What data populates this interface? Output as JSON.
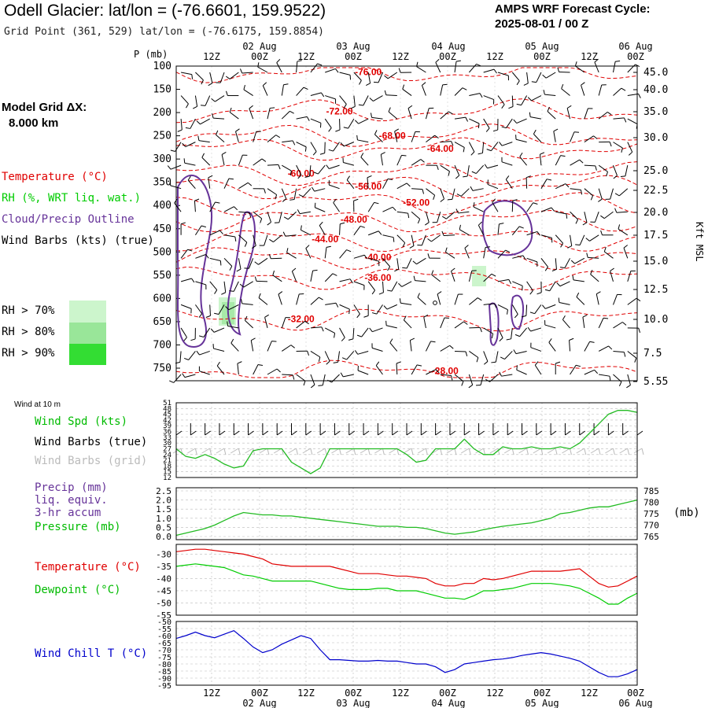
{
  "header": {
    "title": "Odell Glacier:  lat/lon = (-76.6601, 159.9522)",
    "grid_point": "Grid Point (361, 529) lat/lon = (-76.6175, 159.8854)",
    "cycle_line1": "AMPS WRF Forecast Cycle:",
    "cycle_line2": "2025-08-01 / 00  Z"
  },
  "model_grid": {
    "label": "Model Grid ΔX:",
    "value": "8.000 km"
  },
  "time_axis": {
    "top_date_labels": [
      "02 Aug",
      "03 Aug",
      "04 Aug",
      "05 Aug",
      "06 Aug"
    ],
    "hour_labels": [
      "12Z",
      "00Z",
      "12Z",
      "00Z",
      "12Z",
      "00Z",
      "12Z",
      "00Z",
      "12Z",
      "00Z"
    ],
    "bottom_date_labels": [
      "02 Aug",
      "03 Aug",
      "04 Aug",
      "05 Aug",
      "06 Aug"
    ]
  },
  "legend_upper": {
    "temperature": "Temperature (°C)",
    "rh": "RH (%, WRT liq. wat.)",
    "cloud": "Cloud/Precip Outline",
    "barbs": "Wind Barbs (kts) (true)",
    "rh_levels": [
      "RH > 70%",
      "RH > 80%",
      "RH > 90%"
    ],
    "rh_colors": [
      "#ccf5cc",
      "#99e699",
      "#33dd33"
    ]
  },
  "legend_wind": {
    "title": "Wind at 10 m",
    "spd": "Wind Spd (kts)",
    "barbs_true": "Wind Barbs (true)",
    "barbs_grid": "Wind Barbs (grid)"
  },
  "legend_precip": {
    "line1": "Precip (mm)",
    "line2": "liq. equiv.",
    "line3": "3-hr accum",
    "pressure": "Pressure (mb)"
  },
  "legend_temp": {
    "temp": "Temperature (°C)",
    "dew": "Dewpoint (°C)"
  },
  "legend_chill": {
    "label": "Wind Chill T (°C)"
  },
  "axes_labels": {
    "p_label": "P (mb)",
    "kft_label": "Kft MSL",
    "mb_label": "(mb)"
  },
  "colors": {
    "temperature": "#e00000",
    "dewpoint": "#00cc00",
    "cloud": "#663399",
    "windchill": "#0000cc",
    "wind_speed": "#22bb22",
    "grid_barbs": "#bbbbbb"
  },
  "chart_data": [
    {
      "type": "line",
      "panel": "time-height cross section",
      "yaxis_left": "P (mb)",
      "y_ticks_left": [
        "100",
        "150",
        "200",
        "250",
        "300",
        "350",
        "400",
        "450",
        "500",
        "550",
        "600",
        "650",
        "700",
        "750"
      ],
      "y_ticks_right": [
        "45.0",
        "40.0",
        "35.0",
        "30.0",
        "25.0",
        "22.5",
        "20.0",
        "17.5",
        "15.0",
        "12.5",
        "10.0",
        "7.5",
        "5.55"
      ],
      "contour_labels": [
        {
          "text": "-76.00",
          "x": 40,
          "p": 113
        },
        {
          "text": "-72.00",
          "x": 34,
          "p": 197
        },
        {
          "text": "-68.00",
          "x": 45,
          "p": 250
        },
        {
          "text": "-64.00",
          "x": 55,
          "p": 278
        },
        {
          "text": "-60.00",
          "x": 26,
          "p": 331
        },
        {
          "text": "-56.00",
          "x": 40,
          "p": 359
        },
        {
          "text": "-52.00",
          "x": 50,
          "p": 394
        },
        {
          "text": "-48.00",
          "x": 37,
          "p": 430
        },
        {
          "text": "-44.00",
          "x": 31,
          "p": 472
        },
        {
          "text": "-40.00",
          "x": 42,
          "p": 511
        },
        {
          "text": "-36.00",
          "x": 42,
          "p": 555
        },
        {
          "text": "-32.00",
          "x": 26,
          "p": 644
        },
        {
          "text": "-28.00",
          "x": 56,
          "p": 756
        }
      ]
    },
    {
      "type": "line",
      "panel": "wind at 10 m",
      "ylabel": "Wind Spd (kts)",
      "y_ticks": [
        "51",
        "48",
        "45",
        "42",
        "39",
        "36",
        "33",
        "30",
        "27",
        "24",
        "21",
        "18",
        "15",
        "12"
      ],
      "ylim": [
        12,
        51
      ],
      "series": [
        {
          "name": "Wind Spd (kts)",
          "x": [
            0,
            2,
            4,
            6,
            8,
            10,
            12,
            14,
            16,
            18,
            20,
            22,
            24,
            26,
            28,
            30,
            32,
            34,
            36,
            38,
            40,
            42,
            44,
            46,
            48,
            50,
            52,
            54,
            56,
            58,
            60,
            62,
            64,
            66,
            68,
            70,
            72,
            74,
            76,
            78,
            80,
            82,
            84,
            86,
            88,
            90,
            92,
            94,
            96
          ],
          "values": [
            27,
            23,
            22,
            24,
            22,
            19,
            17,
            18,
            26,
            27,
            27,
            27,
            20,
            17,
            14,
            17,
            27,
            27,
            27,
            27,
            27,
            27,
            27,
            27,
            24,
            20,
            21,
            27,
            27,
            27,
            32,
            27,
            24,
            24,
            28,
            27,
            27,
            28,
            27,
            27,
            28,
            27,
            30,
            35,
            40,
            45,
            47,
            47,
            46
          ]
        }
      ]
    },
    {
      "type": "line",
      "panel": "precip and pressure",
      "y_ticks_left": [
        "2.5",
        "2.0",
        "1.5",
        "1.0",
        "0.5",
        "0.0"
      ],
      "y_ticks_right": [
        "785",
        "780",
        "775",
        "770",
        "765"
      ],
      "ylim_left": [
        0,
        2.5
      ],
      "ylim_right": [
        765,
        785
      ],
      "series": [
        {
          "name": "Pressure (mb)",
          "x": [
            0,
            2,
            4,
            6,
            8,
            10,
            12,
            14,
            16,
            18,
            20,
            22,
            24,
            26,
            28,
            30,
            32,
            34,
            36,
            38,
            40,
            42,
            44,
            46,
            48,
            50,
            52,
            54,
            56,
            58,
            60,
            62,
            64,
            66,
            68,
            70,
            72,
            74,
            76,
            78,
            80,
            82,
            84,
            86,
            88,
            90,
            92,
            94,
            96
          ],
          "values": [
            765.5,
            766.5,
            767.5,
            768.5,
            770,
            772,
            774,
            775.5,
            775,
            774.5,
            774.5,
            774,
            774,
            773.5,
            773,
            772.5,
            772,
            771.5,
            771,
            770.5,
            770,
            769.5,
            769.5,
            769.5,
            769,
            769,
            768.5,
            767.5,
            766.5,
            766,
            766.5,
            767,
            768,
            768.8,
            769.5,
            770,
            770.5,
            771,
            772,
            773,
            775,
            775.5,
            776.5,
            777.5,
            778,
            778,
            779,
            780,
            781
          ]
        }
      ]
    },
    {
      "type": "line",
      "panel": "temperature and dewpoint",
      "y_ticks": [
        "-30",
        "-35",
        "-40",
        "-45",
        "-50",
        "-55"
      ],
      "ylim": [
        -55,
        -26
      ],
      "series": [
        {
          "name": "Temperature (°C)",
          "x": [
            0,
            2,
            4,
            6,
            8,
            10,
            12,
            14,
            16,
            18,
            20,
            22,
            24,
            26,
            28,
            30,
            32,
            34,
            36,
            38,
            40,
            42,
            44,
            46,
            48,
            50,
            52,
            54,
            56,
            58,
            60,
            62,
            64,
            66,
            68,
            70,
            72,
            74,
            76,
            78,
            80,
            82,
            84,
            86,
            88,
            90,
            92,
            94,
            96
          ],
          "values": [
            -29,
            -28.5,
            -28,
            -28,
            -28.5,
            -29,
            -29.5,
            -30,
            -31,
            -32,
            -34,
            -34.5,
            -35,
            -35,
            -35,
            -35,
            -35,
            -36,
            -37,
            -38,
            -38,
            -38,
            -38.5,
            -39,
            -39,
            -39.5,
            -40,
            -42,
            -43,
            -43,
            -42,
            -42,
            -40,
            -40.5,
            -40,
            -39,
            -38,
            -37,
            -37,
            -37,
            -37,
            -36.5,
            -36,
            -39,
            -42,
            -43.5,
            -43,
            -41,
            -39
          ]
        },
        {
          "name": "Dewpoint (°C)",
          "x": [
            0,
            2,
            4,
            6,
            8,
            10,
            12,
            14,
            16,
            18,
            20,
            22,
            24,
            26,
            28,
            30,
            32,
            34,
            36,
            38,
            40,
            42,
            44,
            46,
            48,
            50,
            52,
            54,
            56,
            58,
            60,
            62,
            64,
            66,
            68,
            70,
            72,
            74,
            76,
            78,
            80,
            82,
            84,
            86,
            88,
            90,
            92,
            94,
            96
          ],
          "values": [
            -35,
            -34.5,
            -34,
            -34.5,
            -35,
            -35.5,
            -37,
            -38.5,
            -39,
            -40,
            -41,
            -41,
            -41,
            -41,
            -41,
            -42,
            -43,
            -44,
            -44.5,
            -44.5,
            -44.5,
            -44,
            -44,
            -45,
            -45,
            -45,
            -46,
            -47,
            -48,
            -48,
            -48.5,
            -47,
            -45,
            -45,
            -44.5,
            -44,
            -43,
            -42,
            -42,
            -42,
            -42.5,
            -43,
            -44,
            -46,
            -48,
            -50.5,
            -50.5,
            -48,
            -46
          ]
        }
      ]
    },
    {
      "type": "line",
      "panel": "wind chill",
      "ylabel": "Wind Chill T (°C)",
      "y_ticks": [
        "-50",
        "-55",
        "-60",
        "-65",
        "-70",
        "-75",
        "-80",
        "-85",
        "-90",
        "-95"
      ],
      "ylim": [
        -95,
        -50
      ],
      "series": [
        {
          "name": "Wind Chill T (°C)",
          "x": [
            0,
            2,
            4,
            6,
            8,
            10,
            12,
            14,
            16,
            18,
            20,
            22,
            24,
            26,
            28,
            30,
            32,
            34,
            36,
            38,
            40,
            42,
            44,
            46,
            48,
            50,
            52,
            54,
            56,
            58,
            60,
            62,
            64,
            66,
            68,
            70,
            72,
            74,
            76,
            78,
            80,
            82,
            84,
            86,
            88,
            90,
            92,
            94,
            96
          ],
          "values": [
            -62,
            -60,
            -57.5,
            -60,
            -61.5,
            -59,
            -56.5,
            -62,
            -68,
            -72,
            -70,
            -66,
            -63,
            -60,
            -62,
            -70,
            -77,
            -77,
            -77.5,
            -78,
            -78,
            -77.5,
            -78,
            -78,
            -79,
            -80,
            -80,
            -82,
            -86,
            -84,
            -80,
            -79,
            -78,
            -77,
            -76.5,
            -75.5,
            -74,
            -73,
            -72,
            -73,
            -74.5,
            -76,
            -78,
            -82,
            -86,
            -89,
            -89,
            -87,
            -84
          ]
        }
      ]
    }
  ]
}
